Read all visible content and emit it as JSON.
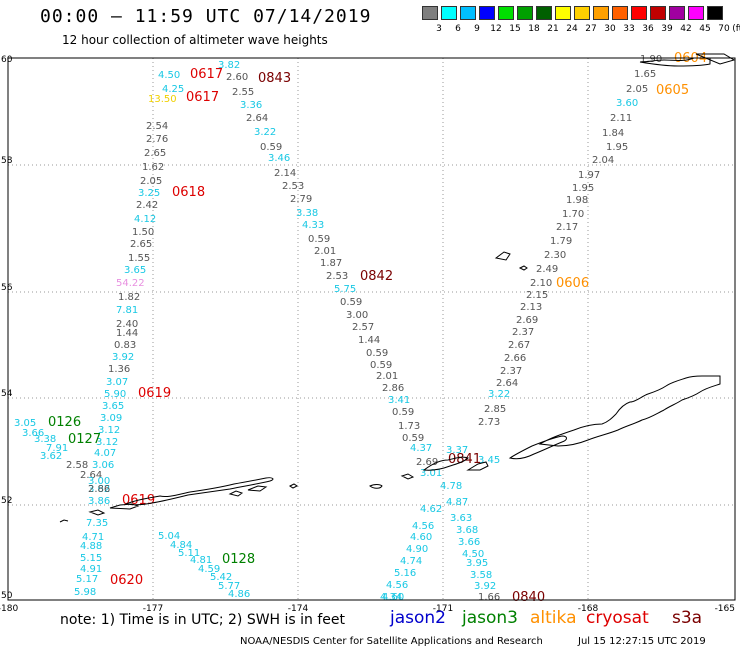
{
  "title": "00:00 – 11:59 UTC 07/14/2019",
  "subtitle": "12 hour collection of altimeter wave heights",
  "legend": {
    "levels": [
      "3",
      "6",
      "9",
      "12",
      "15",
      "18",
      "21",
      "24",
      "27",
      "30",
      "33",
      "36",
      "39",
      "42",
      "45",
      "70"
    ],
    "unit": "(ft)",
    "colors": [
      "#7f7f7f",
      "#00ffff",
      "#00bfff",
      "#0000ff",
      "#00e000",
      "#00a000",
      "#006000",
      "#ffff00",
      "#ffd000",
      "#ffa000",
      "#ff6000",
      "#ff0000",
      "#c00000",
      "#a000a0",
      "#ff00ff",
      "#000000"
    ]
  },
  "axes": {
    "lon_labels": [
      "-180",
      "-177",
      "-174",
      "-171",
      "-168",
      "-165"
    ],
    "lat_labels": [
      "60",
      "58",
      "56",
      "54",
      "52",
      "50"
    ]
  },
  "times": [
    {
      "text": "0617",
      "color": "#dd0000"
    },
    {
      "text": "0843",
      "color": "#7a0000"
    },
    {
      "text": "0617",
      "color": "#dd0000"
    },
    {
      "text": "0618",
      "color": "#dd0000"
    },
    {
      "text": "0842",
      "color": "#7a0000"
    },
    {
      "text": "0619",
      "color": "#dd0000"
    },
    {
      "text": "0126",
      "color": "#008000"
    },
    {
      "text": "0127",
      "color": "#008000"
    },
    {
      "text": "0619",
      "color": "#dd0000"
    },
    {
      "text": "0128",
      "color": "#008000"
    },
    {
      "text": "0620",
      "color": "#dd0000"
    },
    {
      "text": "0841",
      "color": "#7a0000"
    },
    {
      "text": "0840",
      "color": "#7a0000"
    },
    {
      "text": "0604",
      "color": "#ff9000"
    },
    {
      "text": "0605",
      "color": "#ff9000"
    },
    {
      "text": "0606",
      "color": "#ff9000"
    }
  ],
  "values": [
    {
      "t": "4.50",
      "c": "cyan"
    },
    {
      "t": "3.82",
      "c": "cyan"
    },
    {
      "t": "2.60",
      "c": "grey"
    },
    {
      "t": "2.55",
      "c": "grey"
    },
    {
      "t": "4.25",
      "c": "cyan"
    },
    {
      "t": "13.50",
      "c": "yellow"
    },
    {
      "t": "3.36",
      "c": "cyan"
    },
    {
      "t": "2.64",
      "c": "grey"
    },
    {
      "t": "2.54",
      "c": "grey"
    },
    {
      "t": "3.22",
      "c": "cyan"
    },
    {
      "t": "2.76",
      "c": "grey"
    },
    {
      "t": "0.59",
      "c": "grey"
    },
    {
      "t": "2.65",
      "c": "grey"
    },
    {
      "t": "3.46",
      "c": "cyan"
    },
    {
      "t": "1.62",
      "c": "grey"
    },
    {
      "t": "2.14",
      "c": "grey"
    },
    {
      "t": "2.05",
      "c": "grey"
    },
    {
      "t": "2.53",
      "c": "grey"
    },
    {
      "t": "3.25",
      "c": "cyan"
    },
    {
      "t": "2.79",
      "c": "grey"
    },
    {
      "t": "2.42",
      "c": "grey"
    },
    {
      "t": "3.38",
      "c": "cyan"
    },
    {
      "t": "4.12",
      "c": "cyan"
    },
    {
      "t": "4.33",
      "c": "cyan"
    },
    {
      "t": "1.50",
      "c": "grey"
    },
    {
      "t": "0.59",
      "c": "grey"
    },
    {
      "t": "2.65",
      "c": "grey"
    },
    {
      "t": "2.01",
      "c": "grey"
    },
    {
      "t": "1.55",
      "c": "grey"
    },
    {
      "t": "1.87",
      "c": "grey"
    },
    {
      "t": "3.65",
      "c": "cyan"
    },
    {
      "t": "2.53",
      "c": "grey"
    },
    {
      "t": "54.22",
      "c": "pink"
    },
    {
      "t": "5.75",
      "c": "cyan"
    },
    {
      "t": "1.82",
      "c": "grey"
    },
    {
      "t": "0.59",
      "c": "grey"
    },
    {
      "t": "7.81",
      "c": "cyan"
    },
    {
      "t": "3.00",
      "c": "grey"
    },
    {
      "t": "2.40",
      "c": "grey"
    },
    {
      "t": "2.57",
      "c": "grey"
    },
    {
      "t": "1.44",
      "c": "grey"
    },
    {
      "t": "1.44",
      "c": "grey"
    },
    {
      "t": "0.83",
      "c": "grey"
    },
    {
      "t": "0.59",
      "c": "grey"
    },
    {
      "t": "3.92",
      "c": "cyan"
    },
    {
      "t": "0.59",
      "c": "grey"
    },
    {
      "t": "1.36",
      "c": "grey"
    },
    {
      "t": "2.01",
      "c": "grey"
    },
    {
      "t": "3.07",
      "c": "cyan"
    },
    {
      "t": "2.86",
      "c": "grey"
    },
    {
      "t": "5.90",
      "c": "cyan"
    },
    {
      "t": "3.41",
      "c": "cyan"
    },
    {
      "t": "3.65",
      "c": "cyan"
    },
    {
      "t": "0.59",
      "c": "grey"
    },
    {
      "t": "3.09",
      "c": "cyan"
    },
    {
      "t": "1.73",
      "c": "grey"
    },
    {
      "t": "3.12",
      "c": "cyan"
    },
    {
      "t": "0.59",
      "c": "grey"
    },
    {
      "t": "3.12",
      "c": "cyan"
    },
    {
      "t": "4.37",
      "c": "cyan"
    },
    {
      "t": "4.07",
      "c": "cyan"
    },
    {
      "t": "2.69",
      "c": "grey"
    },
    {
      "t": "3.06",
      "c": "cyan"
    },
    {
      "t": "3.01",
      "c": "cyan"
    },
    {
      "t": "3.05",
      "c": "cyan"
    },
    {
      "t": "3.66",
      "c": "cyan"
    },
    {
      "t": "3.38",
      "c": "cyan"
    },
    {
      "t": "7.91",
      "c": "cyan"
    },
    {
      "t": "3.62",
      "c": "cyan"
    },
    {
      "t": "2.58",
      "c": "grey"
    },
    {
      "t": "2.64",
      "c": "grey"
    },
    {
      "t": "3.00",
      "c": "cyan"
    },
    {
      "t": "3.62",
      "c": "cyan"
    },
    {
      "t": "3.86",
      "c": "cyan"
    },
    {
      "t": "2.86",
      "c": "grey"
    },
    {
      "t": "7.35",
      "c": "cyan"
    },
    {
      "t": "4.71",
      "c": "cyan"
    },
    {
      "t": "4.88",
      "c": "cyan"
    },
    {
      "t": "5.15",
      "c": "cyan"
    },
    {
      "t": "4.91",
      "c": "cyan"
    },
    {
      "t": "5.17",
      "c": "cyan"
    },
    {
      "t": "5.98",
      "c": "cyan"
    },
    {
      "t": "5.04",
      "c": "cyan"
    },
    {
      "t": "4.84",
      "c": "cyan"
    },
    {
      "t": "5.11",
      "c": "cyan"
    },
    {
      "t": "4.81",
      "c": "cyan"
    },
    {
      "t": "4.59",
      "c": "cyan"
    },
    {
      "t": "5.42",
      "c": "cyan"
    },
    {
      "t": "5.77",
      "c": "cyan"
    },
    {
      "t": "4.86",
      "c": "cyan"
    },
    {
      "t": "4.56",
      "c": "cyan"
    },
    {
      "t": "4.60",
      "c": "cyan"
    },
    {
      "t": "4.90",
      "c": "cyan"
    },
    {
      "t": "4.74",
      "c": "cyan"
    },
    {
      "t": "5.16",
      "c": "cyan"
    },
    {
      "t": "4.56",
      "c": "cyan"
    },
    {
      "t": "4.60",
      "c": "cyan"
    },
    {
      "t": "4.34",
      "c": "cyan"
    },
    {
      "t": "3.37",
      "c": "cyan"
    },
    {
      "t": "4.78",
      "c": "cyan"
    },
    {
      "t": "4.87",
      "c": "cyan"
    },
    {
      "t": "4.62",
      "c": "cyan"
    },
    {
      "t": "3.63",
      "c": "cyan"
    },
    {
      "t": "3.68",
      "c": "cyan"
    },
    {
      "t": "3.66",
      "c": "cyan"
    },
    {
      "t": "4.50",
      "c": "cyan"
    },
    {
      "t": "3.95",
      "c": "cyan"
    },
    {
      "t": "3.58",
      "c": "cyan"
    },
    {
      "t": "3.92",
      "c": "cyan"
    },
    {
      "t": "1.66",
      "c": "grey"
    },
    {
      "t": "1.90",
      "c": "grey"
    },
    {
      "t": "1.65",
      "c": "grey"
    },
    {
      "t": "2.05",
      "c": "grey"
    },
    {
      "t": "3.60",
      "c": "cyan"
    },
    {
      "t": "2.11",
      "c": "grey"
    },
    {
      "t": "1.84",
      "c": "grey"
    },
    {
      "t": "1.95",
      "c": "grey"
    },
    {
      "t": "2.04",
      "c": "grey"
    },
    {
      "t": "1.97",
      "c": "grey"
    },
    {
      "t": "1.95",
      "c": "grey"
    },
    {
      "t": "1.98",
      "c": "grey"
    },
    {
      "t": "1.70",
      "c": "grey"
    },
    {
      "t": "2.17",
      "c": "grey"
    },
    {
      "t": "1.79",
      "c": "grey"
    },
    {
      "t": "2.30",
      "c": "grey"
    },
    {
      "t": "2.49",
      "c": "grey"
    },
    {
      "t": "2.10",
      "c": "grey"
    },
    {
      "t": "2.15",
      "c": "grey"
    },
    {
      "t": "2.13",
      "c": "grey"
    },
    {
      "t": "2.69",
      "c": "grey"
    },
    {
      "t": "2.37",
      "c": "grey"
    },
    {
      "t": "2.67",
      "c": "grey"
    },
    {
      "t": "2.66",
      "c": "grey"
    },
    {
      "t": "2.37",
      "c": "grey"
    },
    {
      "t": "2.64",
      "c": "grey"
    },
    {
      "t": "3.22",
      "c": "cyan"
    },
    {
      "t": "2.85",
      "c": "grey"
    },
    {
      "t": "2.73",
      "c": "grey"
    },
    {
      "t": "3.45",
      "c": "cyan"
    }
  ],
  "note": "note:  1) Time is in UTC;  2) SWH is in feet",
  "satellites": [
    {
      "name": "jason2",
      "color": "#0000cc"
    },
    {
      "name": "jason3",
      "color": "#008000"
    },
    {
      "name": "altika",
      "color": "#ff9000"
    },
    {
      "name": "cryosat",
      "color": "#dd0000"
    },
    {
      "name": "s3a",
      "color": "#7a0000"
    }
  ],
  "credit": "NOAA/NESDIS Center for Satellite Applications and Research",
  "timestamp": "Jul 15 12:27:15 UTC 2019"
}
